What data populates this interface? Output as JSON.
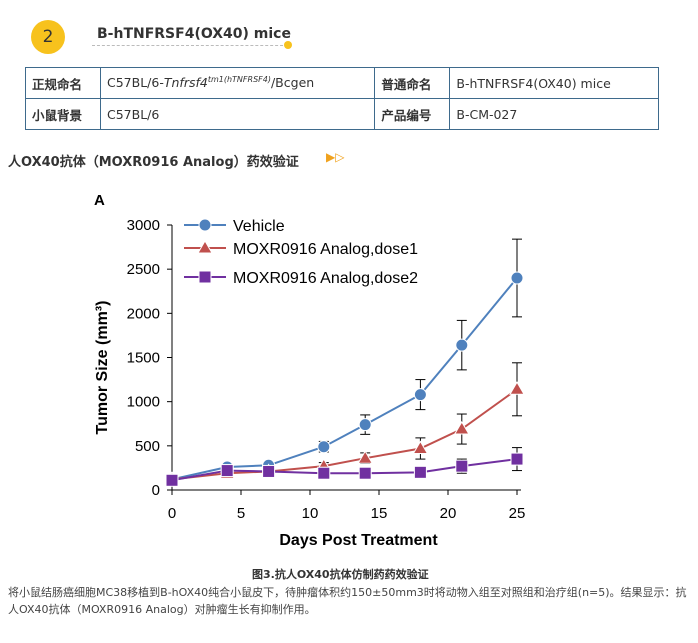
{
  "header": {
    "step_number": "2",
    "product_name": "B-hTNFRSF4(OX40) mice"
  },
  "info_table": {
    "rows": [
      {
        "k1": "正规命名",
        "v1_prefix": "C57BL/6-",
        "v1_gene": "Tnfrsf4",
        "v1_sup": "tm1(hTNFRSF4)",
        "v1_suffix": "/Bcgen",
        "k2": "普通命名",
        "v2": "B-hTNFRSF4(OX40) mice"
      },
      {
        "k1": "小鼠背景",
        "v1": "C57BL/6",
        "k2": "产品编号",
        "v2": "B-CM-027"
      }
    ]
  },
  "section": {
    "title": "人OX40抗体（MOXR0916 Analog）药效验证",
    "arrows": "▶▷"
  },
  "chart_data": {
    "type": "line",
    "panel_label": "A",
    "xlabel": "Days Post Treatment",
    "ylabel": "Tumor Size (mm³)",
    "xlim": [
      0,
      25
    ],
    "ylim": [
      0,
      3000
    ],
    "xticks": [
      0,
      5,
      10,
      15,
      20,
      25
    ],
    "yticks": [
      0,
      500,
      1000,
      1500,
      2000,
      2500,
      3000
    ],
    "legend_position": "top-left",
    "series": [
      {
        "name": "Vehicle",
        "color": "#4f81bd",
        "marker": "circle",
        "x": [
          0,
          4,
          7,
          11,
          14,
          18,
          21,
          25
        ],
        "y": [
          120,
          260,
          280,
          490,
          740,
          1080,
          1640,
          2400
        ],
        "err": [
          20,
          40,
          35,
          60,
          110,
          170,
          280,
          440
        ]
      },
      {
        "name": "MOXR0916 Analog,dose1",
        "color": "#c0504d",
        "marker": "triangle",
        "x": [
          0,
          4,
          7,
          11,
          14,
          18,
          21,
          25
        ],
        "y": [
          120,
          190,
          210,
          270,
          360,
          470,
          690,
          1140
        ],
        "err": [
          20,
          30,
          30,
          40,
          60,
          120,
          170,
          300
        ]
      },
      {
        "name": "MOXR0916 Analog,dose2",
        "color": "#7030a0",
        "marker": "square",
        "x": [
          0,
          4,
          7,
          11,
          14,
          18,
          21,
          25
        ],
        "y": [
          110,
          220,
          210,
          190,
          190,
          200,
          270,
          350
        ],
        "err": [
          20,
          30,
          30,
          30,
          30,
          40,
          80,
          130
        ]
      }
    ]
  },
  "caption": "图3.抗人OX40抗体仿制药药效验证",
  "description": "将小鼠结肠癌细胞MC38移植到B-hOX40纯合小鼠皮下，待肿瘤体积约150±50mm3时将动物入组至对照组和治疗组(n=5)。结果显示：抗人OX40抗体（MOXR0916 Analog）对肿瘤生长有抑制作用。"
}
